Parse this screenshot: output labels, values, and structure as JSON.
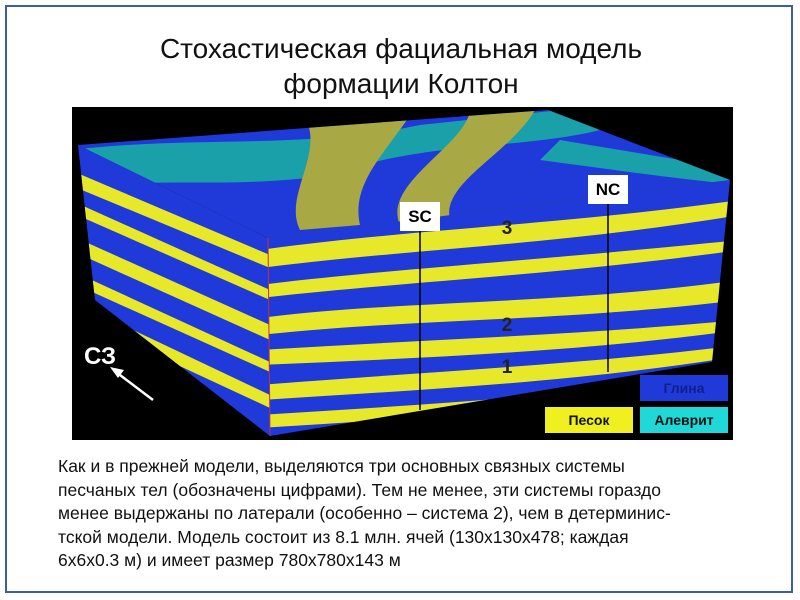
{
  "title": {
    "lines": [
      "Стохастическая фациальная модель",
      "формации Колтон"
    ]
  },
  "figure": {
    "wells": [
      "SC",
      "NC"
    ],
    "systems": [
      "3",
      "2",
      "1"
    ],
    "direction": "СЗ",
    "legend": {
      "clay": "Глина",
      "sand": "Песок",
      "silt": "Алеврит"
    }
  },
  "body": {
    "lines": [
      "Как и в прежней модели, выделяются три основных связных системы",
      "песчаных тел (обозначены цифрами). Тем не менее, эти системы гораздо",
      "менее выдержаны по латерали (особенно – система 2), чем в детерминис-",
      "тской модели. Модель состоит из 8.1 млн. ячей (130х130х478; каждая",
      "6х6х0.3 м) и имеет размер 780х780х143 м"
    ]
  }
}
